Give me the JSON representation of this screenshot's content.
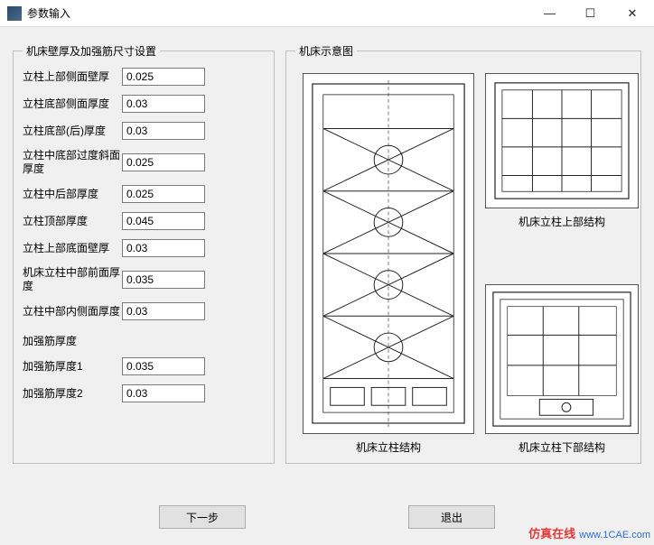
{
  "window": {
    "title": "参数输入",
    "minimize": "—",
    "maximize": "☐",
    "close": "✕"
  },
  "leftGroup": {
    "legend": "机床壁厚及加强筋尺寸设置",
    "fields": [
      {
        "label": "立柱上部侧面壁厚",
        "value": "0.025"
      },
      {
        "label": "立柱底部侧面厚度",
        "value": "0.03"
      },
      {
        "label": "立柱底部(后)厚度",
        "value": "0.03"
      },
      {
        "label": "立柱中底部过度斜面厚度",
        "value": "0.025"
      },
      {
        "label": "立柱中后部厚度",
        "value": "0.025"
      },
      {
        "label": "立柱顶部厚度",
        "value": "0.045"
      },
      {
        "label": "立柱上部底面壁厚",
        "value": "0.03"
      },
      {
        "label": "机床立柱中部前面厚度",
        "value": "0.035"
      },
      {
        "label": "立柱中部内侧面厚度",
        "value": "0.03"
      }
    ],
    "subhead": "加强筋厚度",
    "ribs": [
      {
        "label": "加强筋厚度1",
        "value": "0.035"
      },
      {
        "label": "加强筋厚度2",
        "value": "0.03"
      }
    ]
  },
  "rightGroup": {
    "legend": "机床示意图",
    "captions": {
      "main": "机床立柱结构",
      "top": "机床立柱上部结构",
      "bot": "机床立柱下部结构"
    }
  },
  "buttons": {
    "next": "下一步",
    "exit": "退出"
  },
  "watermark": {
    "brand": "仿真在线",
    "url": "www.1CAE.com"
  }
}
